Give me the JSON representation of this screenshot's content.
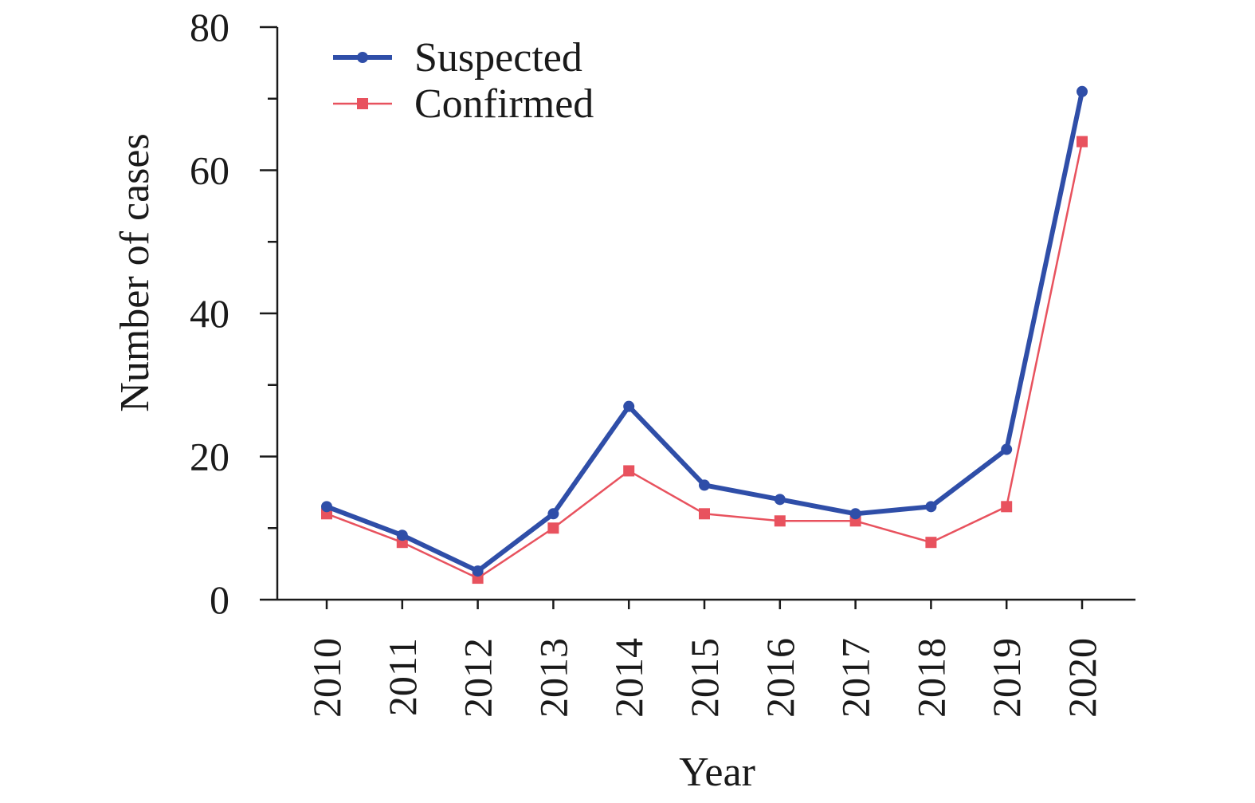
{
  "chart_data": {
    "type": "line",
    "title": "",
    "xlabel": "Year",
    "ylabel": "Number of cases",
    "x": [
      "2010",
      "2011",
      "2012",
      "2013",
      "2014",
      "2015",
      "2016",
      "2017",
      "2018",
      "2019",
      "2020"
    ],
    "ylim": [
      0,
      80
    ],
    "yticks": [
      "0",
      "20",
      "40",
      "60",
      "80"
    ],
    "yticks_minor": [
      10,
      30,
      50,
      70
    ],
    "grid": false,
    "legend_position": "top-left",
    "series": [
      {
        "name": "Suspected",
        "values": [
          13,
          9,
          4,
          12,
          27,
          16,
          14,
          12,
          13,
          21,
          71
        ],
        "color": "#2f4ea8",
        "marker": "circle",
        "line_weight": "thick"
      },
      {
        "name": "Confirmed",
        "values": [
          12,
          8,
          3,
          10,
          18,
          12,
          11,
          11,
          8,
          13,
          64
        ],
        "color": "#e8525e",
        "marker": "square",
        "line_weight": "thin"
      }
    ]
  }
}
